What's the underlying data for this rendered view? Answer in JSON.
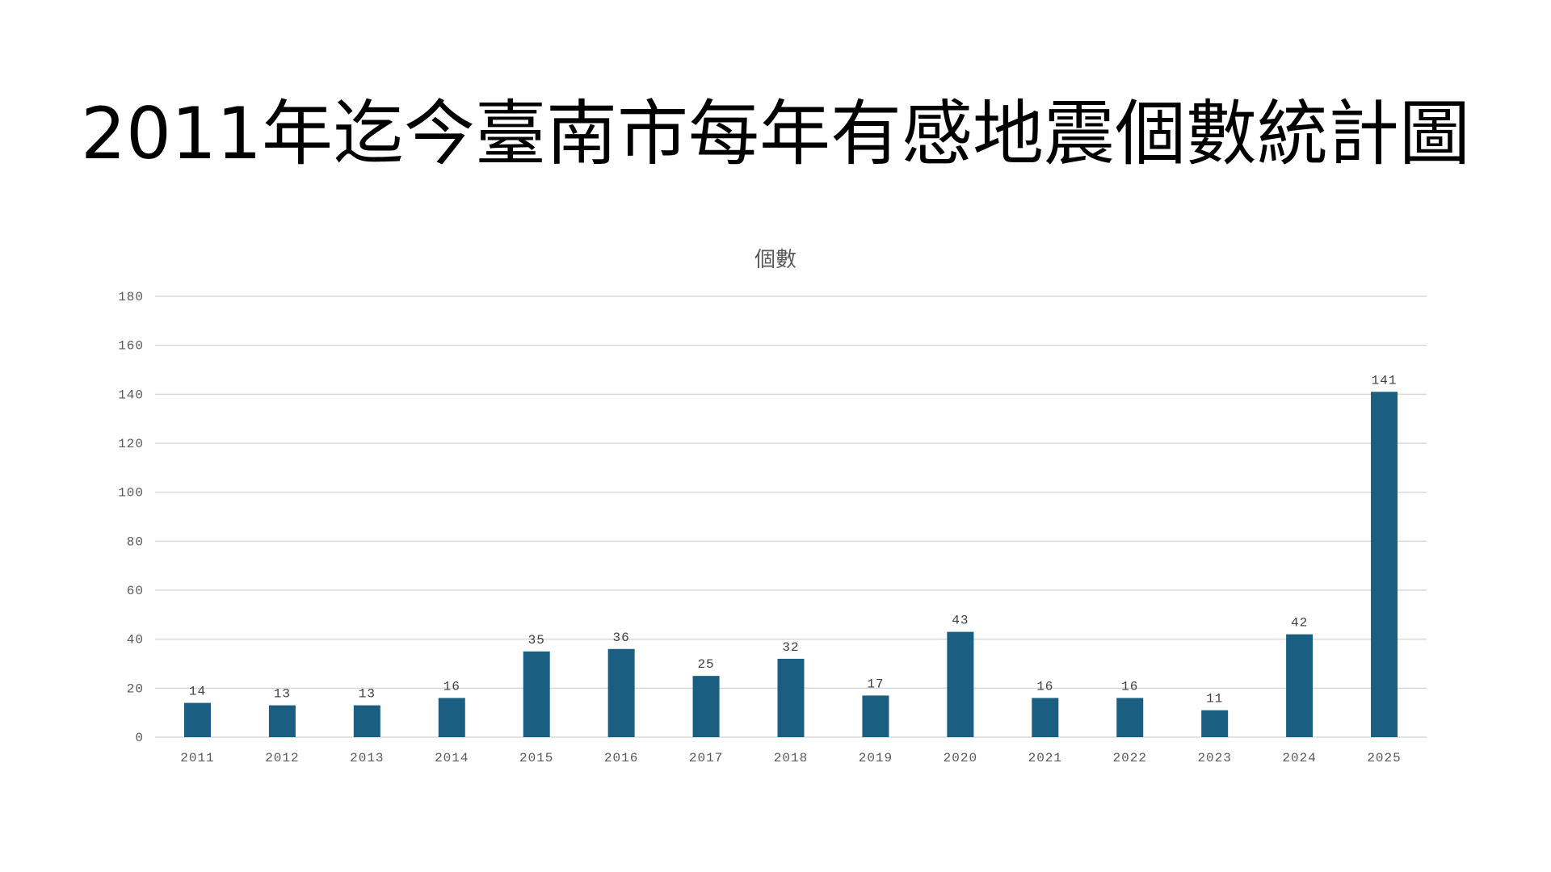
{
  "chart_data": {
    "type": "bar",
    "title": "2011年迄今臺南市每年有感地震個數統計圖",
    "series_title": "個數",
    "categories": [
      "2011",
      "2012",
      "2013",
      "2014",
      "2015",
      "2016",
      "2017",
      "2018",
      "2019",
      "2020",
      "2021",
      "2022",
      "2023",
      "2024",
      "2025"
    ],
    "values": [
      14,
      13,
      13,
      16,
      35,
      36,
      25,
      32,
      17,
      43,
      16,
      16,
      11,
      42,
      141
    ],
    "ylim": [
      0,
      180
    ],
    "yticks": [
      0,
      20,
      40,
      60,
      80,
      100,
      120,
      140,
      160,
      180
    ],
    "grid": true,
    "data_labels": true,
    "bar_color": "#1a5e82",
    "grid_color": "#d9d9d9"
  }
}
